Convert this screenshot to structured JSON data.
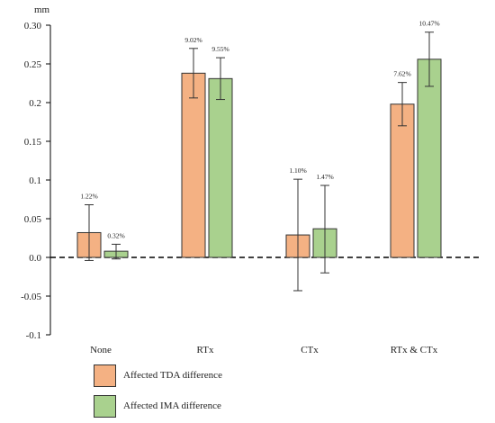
{
  "chart_data": {
    "type": "bar",
    "unit_label": "mm",
    "categories": [
      "None",
      "RTx",
      "CTx",
      "RTx & CTx"
    ],
    "series": [
      {
        "name": "Affected TDA difference",
        "color": "#f4b183",
        "values": [
          0.032,
          0.238,
          0.029,
          0.198
        ],
        "error_low": [
          -0.004,
          0.206,
          -0.043,
          0.17
        ],
        "error_high": [
          0.068,
          0.27,
          0.101,
          0.226
        ],
        "labels": [
          "1.22%",
          "9.02%",
          "1.10%",
          "7.62%"
        ]
      },
      {
        "name": "Affected IMA difference",
        "color": "#a9d18e",
        "values": [
          0.008,
          0.231,
          0.037,
          0.256
        ],
        "error_low": [
          -0.002,
          0.204,
          -0.02,
          0.221
        ],
        "error_high": [
          0.017,
          0.258,
          0.093,
          0.291
        ],
        "labels": [
          "0.32%",
          "9.55%",
          "1.47%",
          "10.47%"
        ]
      }
    ],
    "ylim": [
      -0.1,
      0.3
    ],
    "yticks": [
      "-0.1",
      "-0.05",
      "0.0",
      "0.05",
      "0.1",
      "0.15",
      "0.2",
      "0.25",
      "0.30"
    ],
    "ytick_values": [
      -0.1,
      -0.05,
      0.0,
      0.05,
      0.1,
      0.15,
      0.2,
      0.25,
      0.3
    ],
    "zero_line": "dashed",
    "grid": false,
    "legend_position": "bottom-left"
  }
}
